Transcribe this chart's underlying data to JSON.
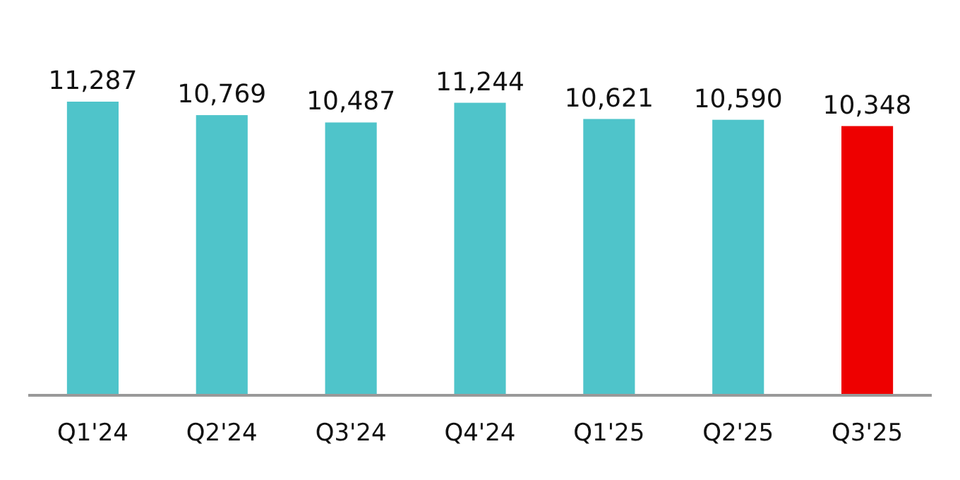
{
  "chart_data": {
    "type": "bar",
    "categories": [
      "Q1'24",
      "Q2'24",
      "Q3'24",
      "Q4'24",
      "Q1'25",
      "Q2'25",
      "Q3'25"
    ],
    "values": [
      11287,
      10769,
      10487,
      11244,
      10621,
      10590,
      10348
    ],
    "colors": [
      "#4fc4ca",
      "#4fc4ca",
      "#4fc4ca",
      "#4fc4ca",
      "#4fc4ca",
      "#4fc4ca",
      "#ee0000"
    ],
    "value_labels": [
      "11,287",
      "10,769",
      "10,487",
      "11,244",
      "10,621",
      "10,590",
      "10,348"
    ],
    "tick_labels": "x"
  }
}
